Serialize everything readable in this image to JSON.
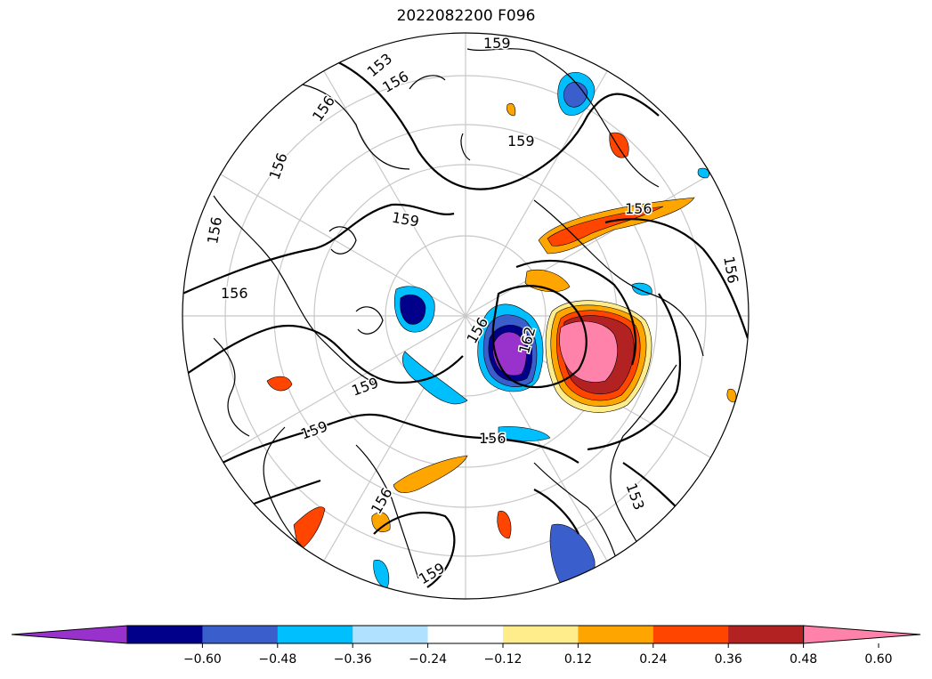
{
  "title": "2022082200 F096",
  "contour_labels": [
    "159",
    "153",
    "156",
    "156",
    "156",
    "156",
    "159",
    "159",
    "156",
    "156",
    "156",
    "159",
    "162",
    "156",
    "156",
    "159",
    "159",
    "153",
    "156"
  ],
  "colorbar": {
    "colors": [
      "#9932cc",
      "#00008b",
      "#3a5fcd",
      "#00bfff",
      "#b0e2ff",
      "#ffffff",
      "#ffec8b",
      "#ffa500",
      "#ff4500",
      "#b22222",
      "#ff82ab"
    ],
    "tick_labels": [
      "−0.60",
      "−0.48",
      "−0.36",
      "−0.24",
      "−0.12",
      "0.12",
      "0.24",
      "0.36",
      "0.48",
      "0.60"
    ],
    "extend": "both"
  }
}
